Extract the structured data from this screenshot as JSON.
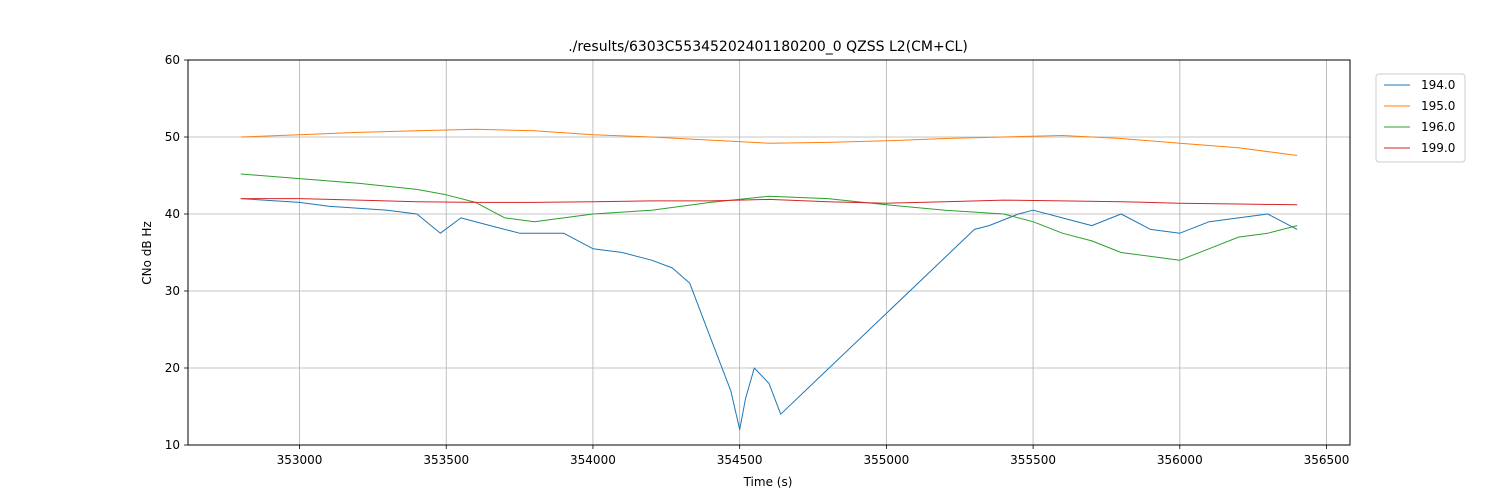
{
  "chart_data": {
    "type": "line",
    "title": "./results/6303C55345202401180200_0 QZSS L2(CM+CL)",
    "xlabel": "Time (s)",
    "ylabel": "CNo dB Hz",
    "xlim": [
      352620,
      356580
    ],
    "ylim": [
      10,
      60
    ],
    "xticks": [
      353000,
      353500,
      354000,
      354500,
      355000,
      355500,
      356000,
      356500
    ],
    "yticks": [
      10,
      20,
      30,
      40,
      50,
      60
    ],
    "grid": true,
    "legend_position": "outside-right-top",
    "series": [
      {
        "name": "194.0",
        "color": "#1f77b4",
        "points": [
          [
            352800,
            42
          ],
          [
            353000,
            41.5
          ],
          [
            353100,
            41
          ],
          [
            353300,
            40.5
          ],
          [
            353400,
            40
          ],
          [
            353480,
            37.5
          ],
          [
            353550,
            39.5
          ],
          [
            353650,
            38.5
          ],
          [
            353750,
            37.5
          ],
          [
            353900,
            37.5
          ],
          [
            354000,
            35.5
          ],
          [
            354100,
            35
          ],
          [
            354200,
            34
          ],
          [
            354270,
            33
          ],
          [
            354330,
            31
          ],
          [
            354380,
            26
          ],
          [
            354430,
            21
          ],
          [
            354470,
            17
          ],
          [
            354500,
            12
          ],
          [
            354520,
            16
          ],
          [
            354550,
            20
          ],
          [
            354600,
            18
          ],
          [
            354640,
            14
          ],
          [
            355300,
            38
          ],
          [
            355350,
            38.5
          ],
          [
            355450,
            40
          ],
          [
            355500,
            40.5
          ],
          [
            355600,
            39.5
          ],
          [
            355700,
            38.5
          ],
          [
            355800,
            40
          ],
          [
            355900,
            38
          ],
          [
            356000,
            37.5
          ],
          [
            356100,
            39
          ],
          [
            356200,
            39.5
          ],
          [
            356300,
            40
          ],
          [
            356400,
            38
          ]
        ]
      },
      {
        "name": "195.0",
        "color": "#ff7f0e",
        "points": [
          [
            352800,
            50
          ],
          [
            353000,
            50.3
          ],
          [
            353200,
            50.6
          ],
          [
            353400,
            50.8
          ],
          [
            353600,
            51
          ],
          [
            353800,
            50.8
          ],
          [
            354000,
            50.3
          ],
          [
            354200,
            50
          ],
          [
            354400,
            49.6
          ],
          [
            354600,
            49.2
          ],
          [
            354800,
            49.3
          ],
          [
            355000,
            49.5
          ],
          [
            355200,
            49.8
          ],
          [
            355400,
            50
          ],
          [
            355600,
            50.2
          ],
          [
            355800,
            49.8
          ],
          [
            356000,
            49.2
          ],
          [
            356200,
            48.6
          ],
          [
            356400,
            47.6
          ]
        ]
      },
      {
        "name": "196.0",
        "color": "#2ca02c",
        "points": [
          [
            352800,
            45.2
          ],
          [
            353000,
            44.6
          ],
          [
            353200,
            44
          ],
          [
            353400,
            43.2
          ],
          [
            353500,
            42.5
          ],
          [
            353600,
            41.5
          ],
          [
            353700,
            39.5
          ],
          [
            353800,
            39
          ],
          [
            354000,
            40
          ],
          [
            354200,
            40.5
          ],
          [
            354400,
            41.5
          ],
          [
            354600,
            42.3
          ],
          [
            354800,
            42
          ],
          [
            355000,
            41.2
          ],
          [
            355200,
            40.5
          ],
          [
            355400,
            40
          ],
          [
            355500,
            39
          ],
          [
            355600,
            37.5
          ],
          [
            355700,
            36.5
          ],
          [
            355800,
            35
          ],
          [
            355900,
            34.5
          ],
          [
            356000,
            34
          ],
          [
            356100,
            35.5
          ],
          [
            356200,
            37
          ],
          [
            356300,
            37.5
          ],
          [
            356400,
            38.5
          ]
        ]
      },
      {
        "name": "199.0",
        "color": "#d62728",
        "points": [
          [
            352800,
            42
          ],
          [
            353000,
            42
          ],
          [
            353200,
            41.8
          ],
          [
            353400,
            41.6
          ],
          [
            353600,
            41.5
          ],
          [
            353800,
            41.5
          ],
          [
            354000,
            41.6
          ],
          [
            354200,
            41.7
          ],
          [
            354400,
            41.7
          ],
          [
            354600,
            41.9
          ],
          [
            354800,
            41.6
          ],
          [
            355000,
            41.4
          ],
          [
            355200,
            41.6
          ],
          [
            355400,
            41.8
          ],
          [
            355600,
            41.7
          ],
          [
            355800,
            41.6
          ],
          [
            356000,
            41.4
          ],
          [
            356200,
            41.3
          ],
          [
            356400,
            41.2
          ]
        ]
      }
    ]
  }
}
